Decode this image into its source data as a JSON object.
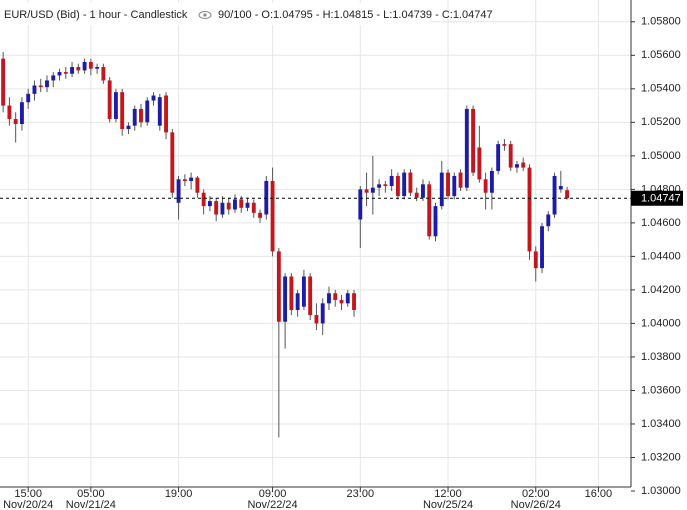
{
  "chart_data": {
    "type": "candlestick",
    "title": "EUR/USD (Bid) - 1 hour - Candlestick",
    "info": "90/100 - O:1.04795 - H:1.04815 - L:1.04739 - C:1.04747",
    "up_color": "#1c1ca8",
    "down_color": "#c4161c",
    "grid": true,
    "last_price": 1.04747,
    "open": [
      1.0558,
      1.053,
      1.0522,
      1.0519,
      1.0532,
      1.0537,
      1.0542,
      1.0541,
      1.0545,
      1.0548,
      1.055,
      1.0549,
      1.0553,
      1.0551,
      1.0556,
      1.0552,
      1.0553,
      1.0545,
      1.0522,
      1.0538,
      1.0516,
      1.0518,
      1.0528,
      1.052,
      1.0533,
      1.0518,
      1.0536,
      1.0514,
      1.0472,
      1.0486,
      1.0485,
      1.0487,
      1.0478,
      1.047,
      1.0473,
      1.0465,
      1.0472,
      1.0468,
      1.0474,
      1.0469,
      1.0472,
      1.0466,
      1.0465,
      1.0485,
      1.0443,
      1.0401,
      1.0428,
      1.0408,
      1.041,
      1.0428,
      1.0405,
      1.04,
      1.0412,
      1.0418,
      1.0414,
      1.0412,
      1.0418,
      1.0462,
      1.048,
      1.0478,
      1.0481,
      1.0483,
      1.0482,
      1.0488,
      1.0476,
      1.049,
      1.0478,
      1.0475,
      1.0483,
      1.0452,
      1.047,
      1.049,
      1.0476,
      1.049,
      1.0481,
      1.0528,
      1.0505,
      1.0486,
      1.0478,
      1.0491,
      1.0507,
      1.0507,
      1.0493,
      1.0496,
      1.0493,
      1.0443,
      1.0433,
      1.0458,
      1.0465,
      1.048,
      1.04795
    ],
    "high": [
      1.0562,
      1.0535,
      1.0526,
      1.0535,
      1.054,
      1.0545,
      1.0546,
      1.0548,
      1.055,
      1.0552,
      1.0553,
      1.0556,
      1.0555,
      1.0558,
      1.0558,
      1.0555,
      1.0555,
      1.0547,
      1.054,
      1.054,
      1.052,
      1.053,
      1.0531,
      1.0535,
      1.0538,
      1.0537,
      1.0538,
      1.0516,
      1.0488,
      1.0489,
      1.049,
      1.0488,
      1.048,
      1.0476,
      1.0475,
      1.0476,
      1.0475,
      1.0477,
      1.0476,
      1.0475,
      1.0474,
      1.0468,
      1.0488,
      1.0493,
      1.0445,
      1.043,
      1.043,
      1.042,
      1.0432,
      1.043,
      1.0412,
      1.0415,
      1.0422,
      1.042,
      1.0417,
      1.042,
      1.042,
      1.0482,
      1.049,
      1.05,
      1.0486,
      1.0485,
      1.0492,
      1.049,
      1.0492,
      1.0492,
      1.0481,
      1.0486,
      1.0485,
      1.0472,
      1.0497,
      1.0492,
      1.049,
      1.0492,
      1.053,
      1.053,
      1.0518,
      1.049,
      1.0493,
      1.0509,
      1.051,
      1.0509,
      1.0497,
      1.0499,
      1.0495,
      1.0446,
      1.046,
      1.0467,
      1.049,
      1.0491,
      1.04815
    ],
    "low": [
      1.0526,
      1.0518,
      1.0508,
      1.0515,
      1.0528,
      1.0533,
      1.0538,
      1.0538,
      1.0541,
      1.0545,
      1.0546,
      1.0547,
      1.0549,
      1.0549,
      1.0548,
      1.0549,
      1.0543,
      1.052,
      1.052,
      1.0512,
      1.0513,
      1.0515,
      1.0517,
      1.0518,
      1.053,
      1.0515,
      1.051,
      1.0475,
      1.0462,
      1.0482,
      1.048,
      1.0475,
      1.0465,
      1.0467,
      1.0461,
      1.0463,
      1.0465,
      1.0466,
      1.0466,
      1.0467,
      1.0463,
      1.046,
      1.0462,
      1.044,
      1.0332,
      1.0385,
      1.0405,
      1.0404,
      1.0408,
      1.0402,
      1.0396,
      1.0393,
      1.0408,
      1.041,
      1.0408,
      1.041,
      1.0404,
      1.0445,
      1.047,
      1.0465,
      1.0476,
      1.0478,
      1.0479,
      1.0474,
      1.0474,
      1.0476,
      1.0473,
      1.0473,
      1.045,
      1.0449,
      1.0468,
      1.0474,
      1.0474,
      1.0479,
      1.0479,
      1.0488,
      1.0484,
      1.0468,
      1.0468,
      1.0489,
      1.0503,
      1.0491,
      1.049,
      1.0491,
      1.0438,
      1.0425,
      1.043,
      1.0455,
      1.0463,
      1.0478,
      1.04739
    ],
    "close": [
      1.053,
      1.0522,
      1.0519,
      1.0532,
      1.0537,
      1.0542,
      1.0541,
      1.0545,
      1.0548,
      1.055,
      1.0549,
      1.0553,
      1.0551,
      1.0556,
      1.0552,
      1.0553,
      1.0545,
      1.0522,
      1.0538,
      1.0516,
      1.0518,
      1.0528,
      1.052,
      1.0533,
      1.0536,
      1.0535,
      1.0514,
      1.0478,
      1.0486,
      1.0485,
      1.0487,
      1.0478,
      1.047,
      1.0473,
      1.0465,
      1.0472,
      1.0468,
      1.0474,
      1.0469,
      1.0472,
      1.0466,
      1.0463,
      1.0485,
      1.0443,
      1.0401,
      1.0428,
      1.0408,
      1.0418,
      1.0428,
      1.0405,
      1.04,
      1.0412,
      1.0418,
      1.0414,
      1.0412,
      1.0418,
      1.0408,
      1.048,
      1.0478,
      1.0481,
      1.0483,
      1.0482,
      1.0488,
      1.0476,
      1.049,
      1.0478,
      1.0475,
      1.0483,
      1.0452,
      1.047,
      1.049,
      1.0476,
      1.0488,
      1.0481,
      1.0528,
      1.049,
      1.0486,
      1.0478,
      1.0491,
      1.0507,
      1.0506,
      1.0493,
      1.0495,
      1.0493,
      1.0443,
      1.0433,
      1.0458,
      1.0465,
      1.0488,
      1.0482,
      1.04747
    ],
    "xlim": [
      -0.5,
      100.2
    ],
    "xticks": [
      {
        "value": 4,
        "label": "15:00",
        "date": "Nov/20/24"
      },
      {
        "value": 14,
        "label": "05:00",
        "date": "Nov/21/24"
      },
      {
        "value": 28,
        "label": "19:00"
      },
      {
        "value": 43,
        "label": "09:00",
        "date": "Nov/22/24"
      },
      {
        "value": 57,
        "label": "23:00"
      },
      {
        "value": 71,
        "label": "12:00",
        "date": "Nov/25/24"
      },
      {
        "value": 85,
        "label": "02:00",
        "date": "Nov/26/24"
      },
      {
        "value": 95,
        "label": "16:00"
      }
    ],
    "ylim": [
      1.03,
      1.0593
    ],
    "yticks": [
      {
        "value": 1.058,
        "label": "1.05800"
      },
      {
        "value": 1.056,
        "label": "1.05600"
      },
      {
        "value": 1.054,
        "label": "1.05400"
      },
      {
        "value": 1.052,
        "label": "1.05200"
      },
      {
        "value": 1.05,
        "label": "1.05000"
      },
      {
        "value": 1.048,
        "label": "1.04800"
      },
      {
        "value": 1.046,
        "label": "1.04600"
      },
      {
        "value": 1.044,
        "label": "1.04400"
      },
      {
        "value": 1.042,
        "label": "1.04200"
      },
      {
        "value": 1.04,
        "label": "1.04000"
      },
      {
        "value": 1.038,
        "label": "1.03800"
      },
      {
        "value": 1.036,
        "label": "1.03600"
      },
      {
        "value": 1.034,
        "label": "1.03400"
      },
      {
        "value": 1.032,
        "label": "1.03200"
      },
      {
        "value": 1.03,
        "label": "1.03000"
      }
    ]
  }
}
